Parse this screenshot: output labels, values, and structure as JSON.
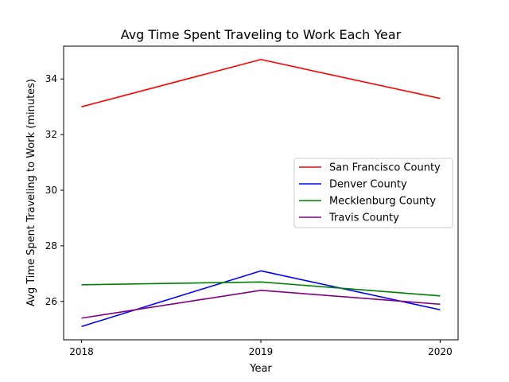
{
  "chart_data": {
    "type": "line",
    "title": "Avg Time Spent Traveling to Work Each Year",
    "xlabel": "Year",
    "ylabel": "Avg Time Spent Traveling to Work (minutes)",
    "x": [
      2018,
      2019,
      2020
    ],
    "x_tick_labels": [
      "2018",
      "2019",
      "2020"
    ],
    "y_ticks": [
      26,
      28,
      30,
      32,
      34
    ],
    "y_tick_labels": [
      "26",
      "28",
      "30",
      "32",
      "34"
    ],
    "xlim": [
      2017.9,
      2020.1
    ],
    "ylim": [
      24.62,
      35.18
    ],
    "grid": false,
    "legend_position": "center-right",
    "series": [
      {
        "name": "San Francisco County",
        "color": "#ff0000",
        "values": [
          33.0,
          34.7,
          33.3
        ]
      },
      {
        "name": "Denver County",
        "color": "#0000ff",
        "values": [
          25.1,
          27.1,
          25.7
        ]
      },
      {
        "name": "Mecklenburg County",
        "color": "#008000",
        "values": [
          26.6,
          26.7,
          26.2
        ]
      },
      {
        "name": "Travis County",
        "color": "#800080",
        "values": [
          25.4,
          26.4,
          25.9
        ]
      }
    ]
  }
}
